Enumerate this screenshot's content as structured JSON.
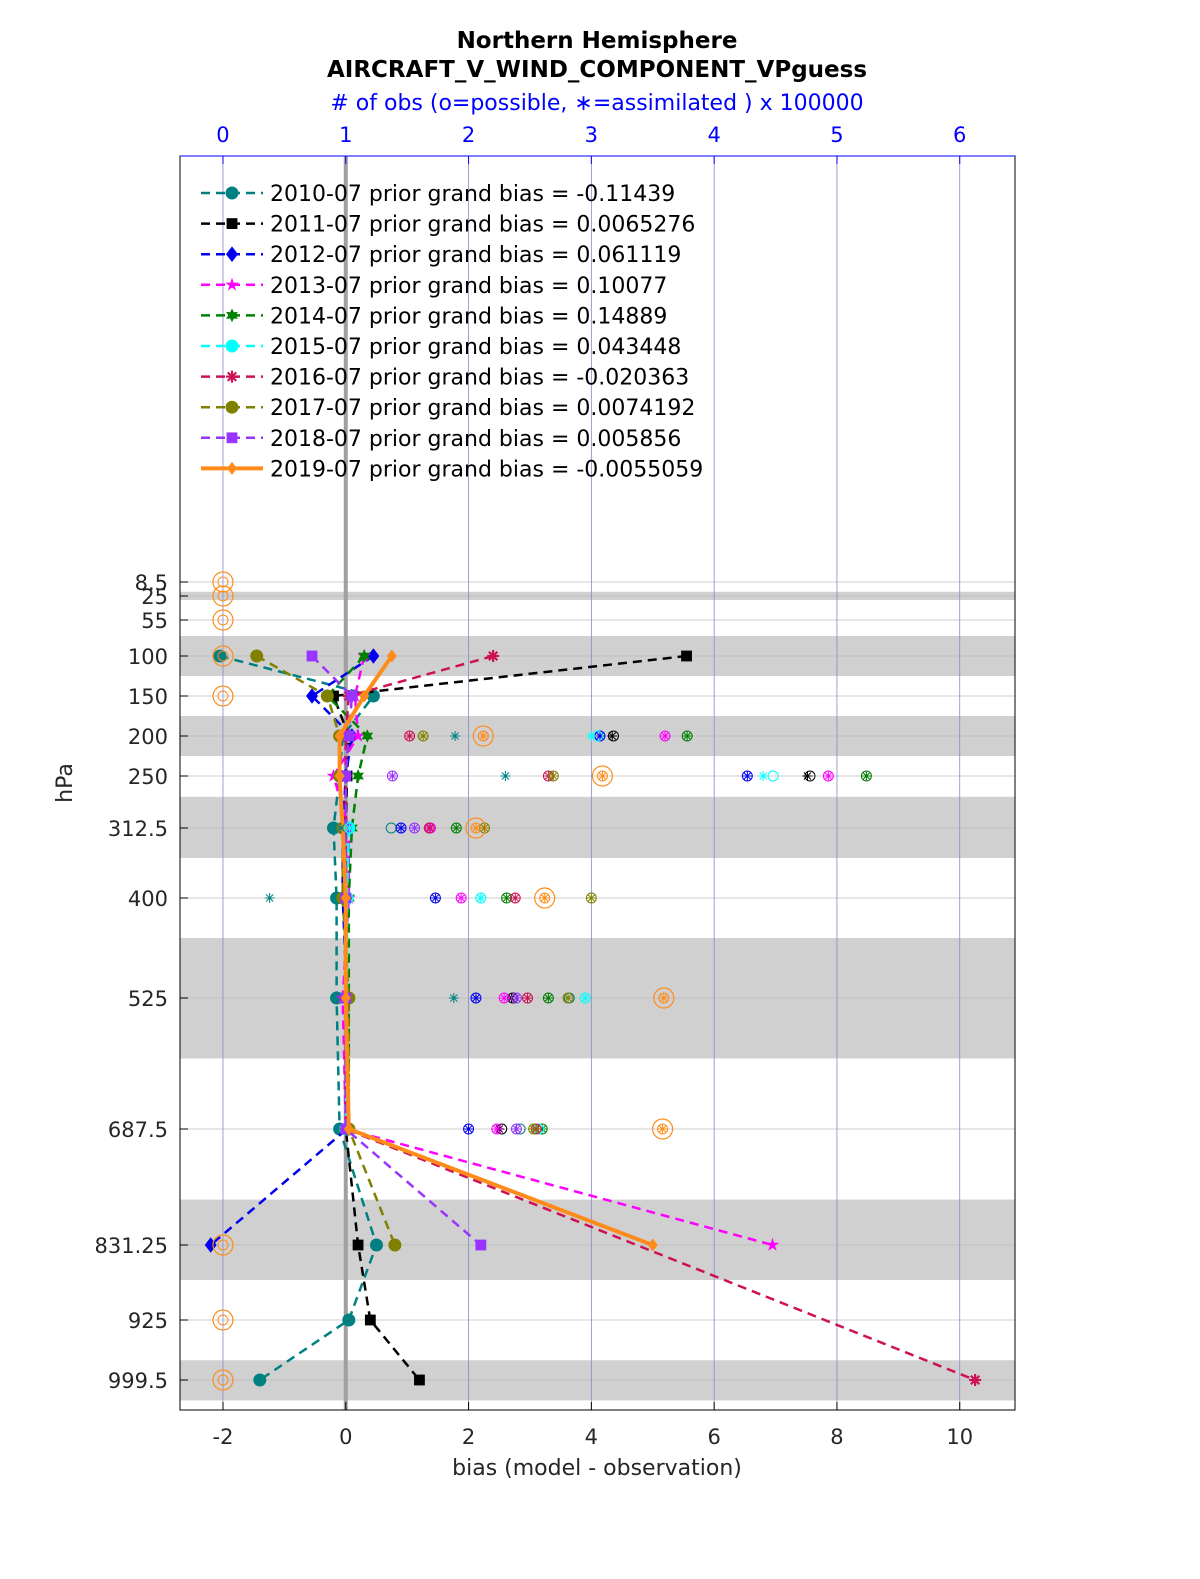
{
  "chart_data": {
    "type": "line",
    "title": "Northern Hemisphere",
    "subtitle": "AIRCRAFT_V_WIND_COMPONENT_VPguess",
    "top_axis_label": "# of obs (o=possible, ∗=assimilated ) x 100000",
    "xlabel": "bias (model - observation)",
    "ylabel": "hPa",
    "xlim": [
      -2.7,
      10.9
    ],
    "x_ticks": [
      -2,
      0,
      2,
      4,
      6,
      8,
      10
    ],
    "x_tick_labels": [
      "-2",
      "0",
      "2",
      "4",
      "6",
      "8",
      "10"
    ],
    "top_ticks": [
      0,
      1,
      2,
      3,
      4,
      5,
      6
    ],
    "top_tick_labels": [
      "0",
      "1",
      "2",
      "3",
      "4",
      "5",
      "6"
    ],
    "top_count_zero_bias": -2,
    "top_bias_per_unit": 2,
    "levels": [
      8.5,
      25,
      55,
      100,
      150,
      200,
      250,
      312.5,
      400,
      525,
      687.5,
      831.25,
      925,
      999.5
    ],
    "level_labels": [
      "8.5",
      "25",
      "55",
      "100",
      "150",
      "200",
      "250",
      "312.5",
      "400",
      "525",
      "687.5",
      "831.25",
      "925",
      "999.5"
    ],
    "shaded_bands": [
      [
        20,
        30
      ],
      [
        75,
        125
      ],
      [
        175,
        225
      ],
      [
        275,
        350
      ],
      [
        450,
        600
      ],
      [
        775,
        875
      ],
      [
        975,
        1025
      ]
    ],
    "zero_line": 0,
    "legend": {
      "position": "top-left",
      "entries": [
        "2010-07 prior grand bias = -0.11439",
        "2011-07 prior grand bias = 0.0065276",
        "2012-07 prior grand bias = 0.061119",
        "2013-07 prior grand bias = 0.10077",
        "2014-07 prior grand bias = 0.14889",
        "2015-07 prior grand bias = 0.043448",
        "2016-07 prior grand bias = -0.020363",
        "2017-07 prior grand bias = 0.0074192",
        "2018-07 prior grand bias = 0.005856",
        "2019-07 prior grand bias = -0.0055059"
      ]
    },
    "series": [
      {
        "name": "2010-07",
        "color": "#008080",
        "marker": "circle",
        "dashed": true,
        "bias": [
          null,
          null,
          null,
          -2.05,
          0.45,
          -0.05,
          -0.1,
          -0.2,
          -0.15,
          -0.15,
          -0.1,
          0.5,
          0.05,
          -1.4
        ],
        "possible": [
          null,
          null,
          null,
          null,
          null,
          null,
          null,
          1.37,
          null,
          2.82,
          2.42,
          null,
          null,
          null
        ],
        "assimilated": [
          null,
          null,
          null,
          null,
          null,
          1.89,
          2.3,
          0.96,
          0.38,
          1.88,
          null,
          null,
          null,
          null
        ]
      },
      {
        "name": "2011-07",
        "color": "#000000",
        "marker": "square",
        "dashed": true,
        "bias": [
          null,
          null,
          null,
          5.55,
          -0.2,
          0.05,
          0.02,
          0.0,
          0.0,
          0.02,
          0.0,
          0.2,
          0.4,
          1.2
        ],
        "possible": [
          null,
          null,
          null,
          null,
          null,
          3.18,
          4.78,
          null,
          null,
          2.36,
          2.27,
          null,
          null,
          null
        ],
        "assimilated": [
          null,
          null,
          null,
          null,
          null,
          3.17,
          4.76,
          null,
          null,
          2.35,
          2.25,
          null,
          null,
          null
        ]
      },
      {
        "name": "2012-07",
        "color": "#0000ee",
        "marker": "diamond",
        "dashed": true,
        "bias": [
          null,
          null,
          null,
          0.45,
          -0.55,
          0.1,
          0.0,
          -0.05,
          -0.05,
          0.02,
          0.02,
          -2.2,
          null,
          null
        ],
        "possible": [
          null,
          null,
          null,
          null,
          null,
          3.07,
          4.27,
          1.45,
          1.73,
          2.06,
          2.0,
          null,
          null,
          null
        ],
        "assimilated": [
          null,
          null,
          null,
          null,
          null,
          3.07,
          4.27,
          1.45,
          1.73,
          2.06,
          2.0,
          null,
          null,
          null
        ]
      },
      {
        "name": "2013-07",
        "color": "#ff00ff",
        "marker": "star",
        "dashed": true,
        "bias": [
          null,
          null,
          null,
          0.3,
          0.15,
          0.2,
          -0.2,
          0.05,
          0.05,
          -0.05,
          0.0,
          6.95,
          null,
          null
        ],
        "possible": [
          null,
          null,
          null,
          null,
          null,
          3.6,
          4.93,
          1.69,
          1.94,
          2.29,
          2.23,
          null,
          null,
          null
        ],
        "assimilated": [
          null,
          null,
          null,
          null,
          null,
          3.6,
          4.93,
          1.69,
          1.94,
          2.29,
          2.23,
          null,
          null,
          null
        ]
      },
      {
        "name": "2014-07",
        "color": "#008000",
        "marker": "hexagram",
        "dashed": true,
        "bias": [
          null,
          null,
          null,
          0.3,
          -0.3,
          0.35,
          0.2,
          0.1,
          0.05,
          0.05,
          0.05,
          null,
          null,
          null
        ],
        "possible": [
          null,
          null,
          null,
          null,
          null,
          3.78,
          5.24,
          1.9,
          2.31,
          2.65,
          2.6,
          null,
          null,
          null
        ],
        "assimilated": [
          null,
          null,
          null,
          null,
          null,
          3.78,
          5.24,
          1.9,
          2.31,
          2.65,
          2.6,
          null,
          null,
          null
        ]
      },
      {
        "name": "2015-07",
        "color": "#00ffff",
        "marker": "circle",
        "dashed": true,
        "bias": [
          null,
          null,
          null,
          null,
          null,
          null,
          null,
          0.05,
          0.02,
          0.02,
          0.0,
          null,
          null,
          null
        ],
        "possible": [
          null,
          null,
          null,
          null,
          null,
          3.05,
          4.48,
          1.03,
          2.1,
          2.95,
          2.57,
          null,
          null,
          null
        ],
        "assimilated": [
          null,
          null,
          null,
          null,
          null,
          3.0,
          4.4,
          1.03,
          2.1,
          2.95,
          2.55,
          null,
          null,
          null
        ]
      },
      {
        "name": "2016-07",
        "color": "#cc1155",
        "marker": "asterisk",
        "dashed": true,
        "bias": [
          null,
          null,
          null,
          2.4,
          0.05,
          0.0,
          0.0,
          0.0,
          0.0,
          0.0,
          0.0,
          null,
          null,
          10.25
        ],
        "possible": [
          null,
          null,
          null,
          null,
          null,
          1.52,
          2.65,
          1.68,
          2.38,
          2.48,
          2.55,
          null,
          null,
          null
        ],
        "assimilated": [
          null,
          null,
          null,
          null,
          null,
          1.52,
          2.65,
          1.68,
          2.38,
          2.48,
          2.55,
          null,
          null,
          null
        ]
      },
      {
        "name": "2017-07",
        "color": "#808000",
        "marker": "circle",
        "dashed": true,
        "bias": [
          null,
          null,
          null,
          -1.45,
          -0.3,
          -0.1,
          -0.1,
          -0.05,
          -0.05,
          0.05,
          0.05,
          0.8,
          null,
          null
        ],
        "possible": [
          null,
          null,
          null,
          null,
          null,
          1.63,
          2.69,
          2.13,
          3.0,
          2.81,
          2.53,
          null,
          null,
          null
        ],
        "assimilated": [
          null,
          null,
          null,
          null,
          null,
          1.63,
          2.69,
          2.13,
          3.0,
          2.81,
          2.53,
          null,
          null,
          null
        ]
      },
      {
        "name": "2018-07",
        "color": "#9933ff",
        "marker": "square",
        "dashed": true,
        "bias": [
          null,
          null,
          null,
          -0.55,
          0.1,
          0.05,
          0.0,
          0.0,
          0.0,
          0.0,
          0.0,
          2.2,
          null,
          null
        ],
        "possible": [
          null,
          null,
          null,
          null,
          null,
          1.03,
          1.38,
          1.56,
          null,
          2.39,
          2.39,
          null,
          null,
          null
        ],
        "assimilated": [
          null,
          null,
          null,
          null,
          null,
          1.03,
          1.38,
          1.56,
          null,
          2.39,
          2.39,
          null,
          null,
          null
        ]
      },
      {
        "name": "2019-07",
        "color": "#ff8c1a",
        "marker": "diamond",
        "dashed": false,
        "bias": [
          null,
          null,
          null,
          0.75,
          0.3,
          -0.1,
          -0.1,
          -0.05,
          0.0,
          0.0,
          0.05,
          5.0,
          null,
          null
        ],
        "possible": [
          0,
          0,
          0,
          0,
          0,
          2.12,
          3.09,
          2.06,
          2.62,
          3.59,
          3.58,
          0,
          0,
          0
        ],
        "assimilated": [
          null,
          null,
          null,
          null,
          null,
          2.12,
          3.09,
          2.06,
          2.62,
          3.59,
          3.58,
          null,
          null,
          null
        ]
      }
    ]
  }
}
